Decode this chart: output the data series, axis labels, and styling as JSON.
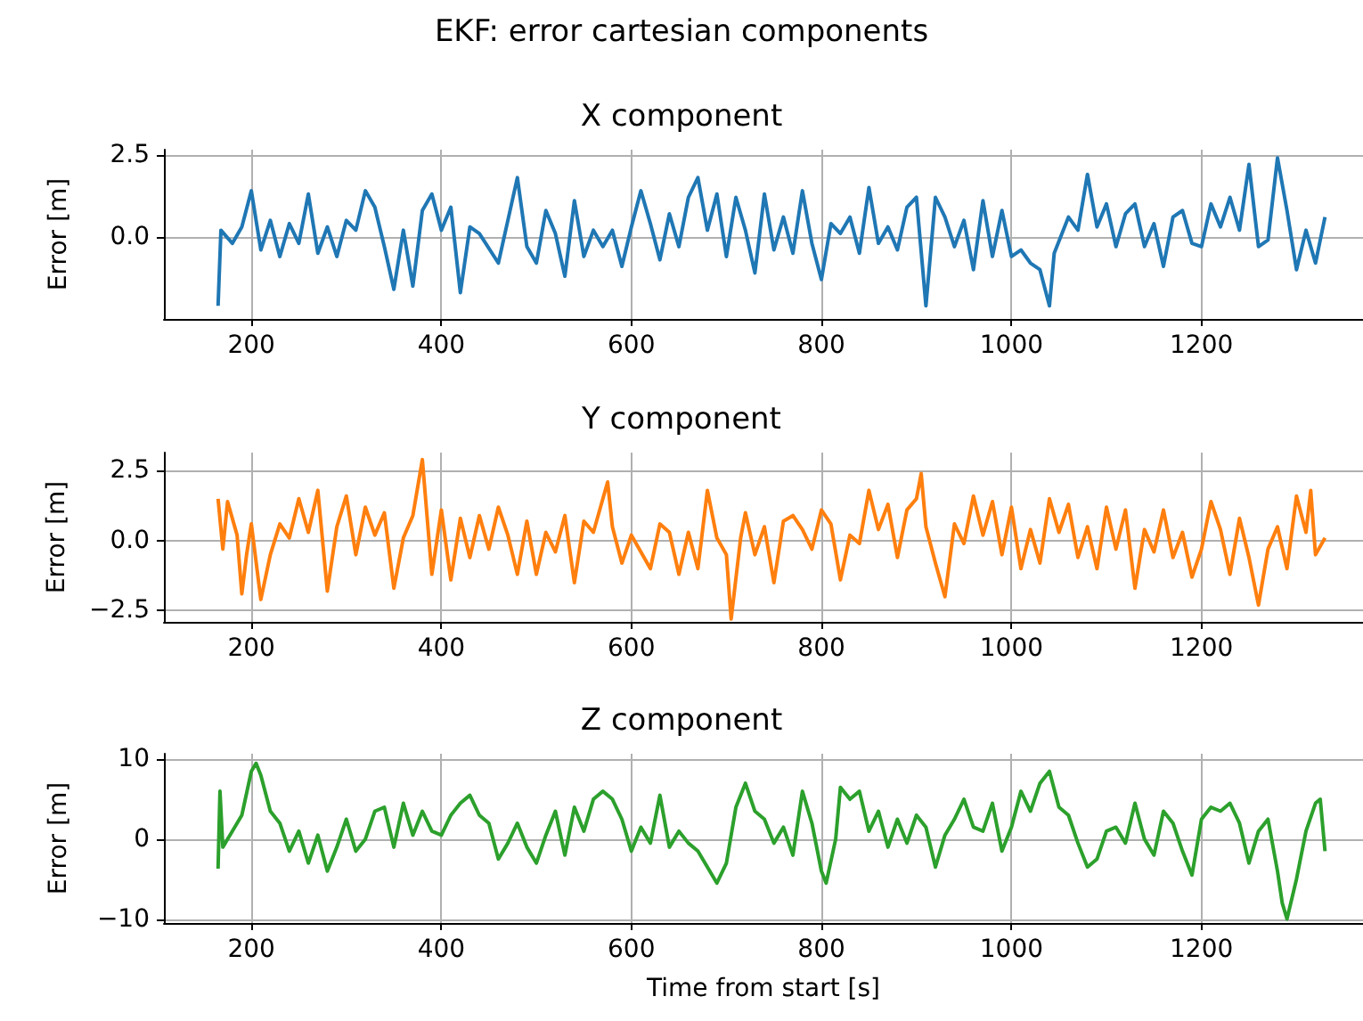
{
  "chart_data": [
    {
      "type": "line",
      "title": "X component",
      "ylabel": "Error [m]",
      "annotations": [
        "EKF: error cartesian components"
      ],
      "xlim": [
        108,
        1370
      ],
      "xticks": [
        200,
        400,
        600,
        800,
        1000,
        1200
      ],
      "ylim": [
        -2.5,
        2.65
      ],
      "yticks": [
        {
          "value": 2.5,
          "label": "2.5"
        },
        {
          "value": 0,
          "label": "0.0"
        }
      ],
      "grid": true,
      "marker": "none",
      "series": [
        {
          "color": "#1f77b4",
          "x": [
            165,
            168,
            180,
            190,
            200,
            210,
            220,
            230,
            240,
            250,
            260,
            270,
            280,
            290,
            300,
            310,
            320,
            330,
            340,
            350,
            360,
            370,
            380,
            390,
            400,
            410,
            420,
            430,
            440,
            460,
            470,
            480,
            490,
            500,
            510,
            520,
            530,
            540,
            550,
            560,
            570,
            580,
            590,
            600,
            610,
            620,
            630,
            640,
            650,
            660,
            670,
            680,
            690,
            700,
            710,
            720,
            730,
            740,
            750,
            760,
            770,
            780,
            790,
            800,
            810,
            820,
            830,
            840,
            850,
            860,
            870,
            880,
            890,
            900,
            910,
            920,
            930,
            940,
            950,
            960,
            970,
            980,
            990,
            1000,
            1010,
            1020,
            1030,
            1040,
            1045,
            1060,
            1070,
            1080,
            1090,
            1100,
            1110,
            1120,
            1130,
            1140,
            1150,
            1160,
            1170,
            1180,
            1190,
            1200,
            1210,
            1220,
            1230,
            1240,
            1250,
            1260,
            1270,
            1280,
            1290,
            1300,
            1310,
            1320,
            1330
          ],
          "values": [
            -2.1,
            0.2,
            -0.2,
            0.3,
            1.4,
            -0.4,
            0.5,
            -0.6,
            0.4,
            -0.2,
            1.3,
            -0.5,
            0.3,
            -0.6,
            0.5,
            0.2,
            1.4,
            0.9,
            -0.3,
            -1.6,
            0.2,
            -1.5,
            0.8,
            1.3,
            0.2,
            0.9,
            -1.7,
            0.3,
            0.1,
            -0.8,
            0.5,
            1.8,
            -0.3,
            -0.8,
            0.8,
            0.1,
            -1.2,
            1.1,
            -0.6,
            0.2,
            -0.3,
            0.2,
            -0.9,
            0.3,
            1.4,
            0.4,
            -0.7,
            0.7,
            -0.3,
            1.2,
            1.8,
            0.2,
            1.3,
            -0.6,
            1.2,
            0.2,
            -1.1,
            1.3,
            -0.4,
            0.6,
            -0.5,
            1.4,
            -0.2,
            -1.3,
            0.4,
            0.1,
            0.6,
            -0.5,
            1.5,
            -0.2,
            0.3,
            -0.4,
            0.9,
            1.2,
            -2.1,
            1.2,
            0.6,
            -0.3,
            0.5,
            -1.0,
            1.1,
            -0.6,
            0.8,
            -0.6,
            -0.4,
            -0.8,
            -1.0,
            -2.1,
            -0.5,
            0.6,
            0.2,
            1.9,
            0.3,
            1.0,
            -0.3,
            0.7,
            1.0,
            -0.3,
            0.4,
            -0.9,
            0.6,
            0.8,
            -0.2,
            -0.3,
            1.0,
            0.3,
            1.2,
            0.2,
            2.2,
            -0.3,
            -0.1,
            2.4,
            0.8,
            -1.0,
            0.2,
            -0.8,
            0.6
          ]
        }
      ]
    },
    {
      "type": "line",
      "title": "Y component",
      "ylabel": "Error [m]",
      "xlim": [
        108,
        1370
      ],
      "xticks": [
        200,
        400,
        600,
        800,
        1000,
        1200
      ],
      "ylim": [
        -2.9,
        3.15
      ],
      "yticks": [
        {
          "value": -2.5,
          "label": "−2.5"
        },
        {
          "value": 0,
          "label": "0.0"
        },
        {
          "value": 2.5,
          "label": "2.5"
        }
      ],
      "grid": true,
      "marker": "none",
      "series": [
        {
          "color": "#ff7f0e",
          "x": [
            165,
            170,
            175,
            185,
            190,
            195,
            200,
            210,
            220,
            230,
            240,
            250,
            260,
            270,
            280,
            290,
            300,
            310,
            320,
            330,
            340,
            350,
            360,
            370,
            380,
            390,
            400,
            410,
            420,
            430,
            440,
            450,
            460,
            470,
            480,
            490,
            500,
            510,
            520,
            530,
            540,
            550,
            560,
            570,
            575,
            580,
            590,
            600,
            610,
            620,
            630,
            640,
            650,
            660,
            670,
            680,
            690,
            700,
            705,
            715,
            720,
            730,
            740,
            750,
            760,
            770,
            780,
            790,
            800,
            810,
            820,
            830,
            840,
            850,
            860,
            870,
            880,
            890,
            900,
            905,
            910,
            920,
            930,
            940,
            950,
            960,
            970,
            980,
            990,
            1000,
            1010,
            1020,
            1030,
            1040,
            1050,
            1060,
            1070,
            1080,
            1090,
            1100,
            1110,
            1120,
            1130,
            1140,
            1150,
            1160,
            1170,
            1180,
            1190,
            1200,
            1210,
            1220,
            1230,
            1240,
            1250,
            1260,
            1270,
            1280,
            1290,
            1300,
            1310,
            1315,
            1320,
            1330
          ],
          "values": [
            1.5,
            -0.3,
            1.4,
            0.2,
            -1.9,
            -0.5,
            0.6,
            -2.1,
            -0.5,
            0.6,
            0.1,
            1.5,
            0.3,
            1.8,
            -1.8,
            0.5,
            1.6,
            -0.5,
            1.2,
            0.2,
            1.0,
            -1.7,
            0.1,
            0.9,
            2.9,
            -1.2,
            1.1,
            -1.4,
            0.8,
            -0.6,
            0.9,
            -0.3,
            1.2,
            0.2,
            -1.2,
            0.7,
            -1.2,
            0.3,
            -0.4,
            0.9,
            -1.5,
            0.7,
            0.3,
            1.5,
            2.1,
            0.5,
            -0.8,
            0.2,
            -0.4,
            -1.0,
            0.6,
            0.3,
            -1.2,
            0.3,
            -1.0,
            1.8,
            0.1,
            -0.5,
            -2.8,
            0.1,
            1.0,
            -0.5,
            0.5,
            -1.5,
            0.7,
            0.9,
            0.4,
            -0.3,
            1.1,
            0.6,
            -1.4,
            0.2,
            -0.1,
            1.8,
            0.4,
            1.3,
            -0.6,
            1.1,
            1.5,
            2.4,
            0.5,
            -0.8,
            -2.0,
            0.6,
            -0.1,
            1.6,
            0.2,
            1.4,
            -0.5,
            1.2,
            -1.0,
            0.4,
            -0.8,
            1.5,
            0.3,
            1.3,
            -0.6,
            0.5,
            -1.0,
            1.2,
            -0.3,
            1.1,
            -1.7,
            0.4,
            -0.4,
            1.1,
            -0.6,
            0.3,
            -1.3,
            -0.3,
            1.4,
            0.4,
            -1.2,
            0.8,
            -0.6,
            -2.3,
            -0.3,
            0.5,
            -1.0,
            1.6,
            0.3,
            1.8,
            -0.5,
            0.1
          ]
        }
      ]
    },
    {
      "type": "line",
      "title": "Z component",
      "xlabel": "Time from start [s]",
      "ylabel": "Error [m]",
      "xlim": [
        108,
        1370
      ],
      "xticks": [
        200,
        400,
        600,
        800,
        1000,
        1200
      ],
      "ylim": [
        -10.5,
        10.7
      ],
      "yticks": [
        {
          "value": -10,
          "label": "−10"
        },
        0,
        10
      ],
      "grid": true,
      "marker": "none",
      "series": [
        {
          "color": "#2ca02c",
          "x": [
            165,
            167,
            170,
            180,
            190,
            200,
            205,
            210,
            220,
            230,
            240,
            250,
            260,
            270,
            280,
            290,
            300,
            310,
            320,
            330,
            340,
            350,
            360,
            370,
            380,
            390,
            400,
            410,
            420,
            430,
            440,
            450,
            460,
            470,
            480,
            490,
            500,
            510,
            520,
            530,
            540,
            550,
            560,
            570,
            580,
            590,
            600,
            610,
            620,
            630,
            640,
            650,
            660,
            670,
            680,
            690,
            700,
            710,
            720,
            730,
            740,
            750,
            760,
            770,
            780,
            790,
            800,
            805,
            815,
            820,
            830,
            840,
            850,
            860,
            870,
            880,
            890,
            900,
            910,
            920,
            930,
            940,
            950,
            960,
            970,
            980,
            990,
            1000,
            1010,
            1020,
            1030,
            1040,
            1050,
            1060,
            1070,
            1080,
            1090,
            1100,
            1110,
            1120,
            1130,
            1140,
            1150,
            1160,
            1170,
            1180,
            1190,
            1200,
            1210,
            1220,
            1230,
            1240,
            1250,
            1260,
            1270,
            1280,
            1285,
            1290,
            1300,
            1310,
            1320,
            1325,
            1330
          ],
          "values": [
            -3.7,
            6.0,
            -1.0,
            1.0,
            3.0,
            8.5,
            9.5,
            8.0,
            3.5,
            2.0,
            -1.5,
            1.0,
            -3.0,
            0.5,
            -4.0,
            -1.0,
            2.5,
            -1.5,
            0.0,
            3.5,
            4.0,
            -1.0,
            4.5,
            0.5,
            3.5,
            1.0,
            0.5,
            3.0,
            4.5,
            5.5,
            3.0,
            2.0,
            -2.5,
            -0.5,
            2.0,
            -1.0,
            -3.0,
            0.5,
            3.5,
            -2.0,
            4.0,
            1.0,
            5.0,
            6.0,
            5.0,
            2.5,
            -1.5,
            1.5,
            -0.5,
            5.5,
            -1.0,
            1.0,
            -0.5,
            -1.5,
            -3.5,
            -5.5,
            -3.0,
            4.0,
            7.0,
            3.5,
            2.5,
            -0.5,
            1.5,
            -2.0,
            6.0,
            2.0,
            -4.0,
            -5.5,
            0.0,
            6.5,
            5.0,
            6.0,
            1.0,
            3.5,
            -1.0,
            2.5,
            -0.5,
            3.0,
            1.5,
            -3.5,
            0.5,
            2.5,
            5.0,
            1.5,
            1.0,
            4.5,
            -1.5,
            1.5,
            6.0,
            3.5,
            7.0,
            8.5,
            4.0,
            3.0,
            -0.5,
            -3.5,
            -2.5,
            1.0,
            1.5,
            -0.5,
            4.5,
            0.0,
            -2.0,
            3.5,
            2.0,
            -1.5,
            -4.5,
            2.5,
            4.0,
            3.5,
            4.5,
            2.0,
            -3.0,
            1.0,
            2.5,
            -4.0,
            -8.0,
            -10.0,
            -5.0,
            1.0,
            4.5,
            5.0,
            -1.5
          ]
        }
      ]
    }
  ]
}
